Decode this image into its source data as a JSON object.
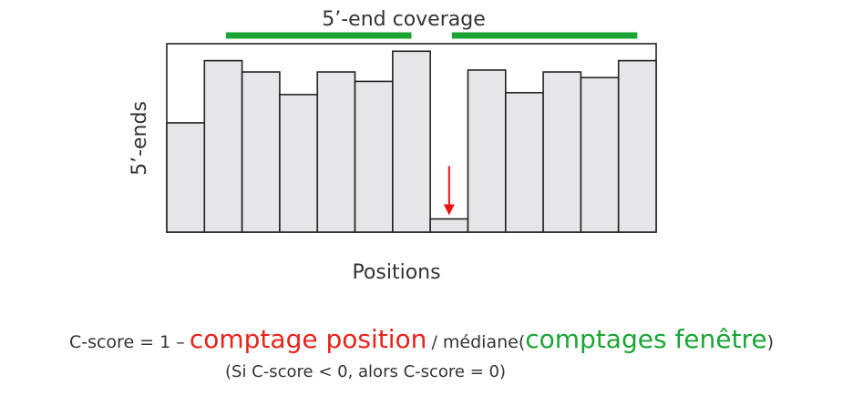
{
  "chart_data": {
    "type": "bar",
    "title": "5’-end coverage",
    "xlabel": "Positions",
    "ylabel": "5’-ends",
    "categories": [
      "",
      "",
      "",
      "",
      "",
      "",
      "",
      "",
      "",
      "",
      "",
      "",
      ""
    ],
    "values": [
      58,
      91,
      85,
      73,
      85,
      80,
      96,
      7,
      86,
      74,
      85,
      82,
      91
    ],
    "ylim": [
      0,
      100
    ],
    "highlight_index": 7,
    "window_bars": [
      {
        "start": 2,
        "end": 6
      },
      {
        "start": 8,
        "end": 12
      }
    ],
    "colors": {
      "bar_fill": "#e6e6e8",
      "bar_stroke": "#222222",
      "window": "#1aa535",
      "arrow": "#ee1111"
    }
  },
  "formula": {
    "prefix": "C-score = 1 –",
    "position_count": "comptage position",
    "divider": "/ médiane(",
    "window_counts": "comptages fenêtre",
    "suffix": ")",
    "note": "(Si C-score < 0, alors C-score = 0)",
    "colors": {
      "position": "#e8231b",
      "window": "#1aa535"
    }
  }
}
